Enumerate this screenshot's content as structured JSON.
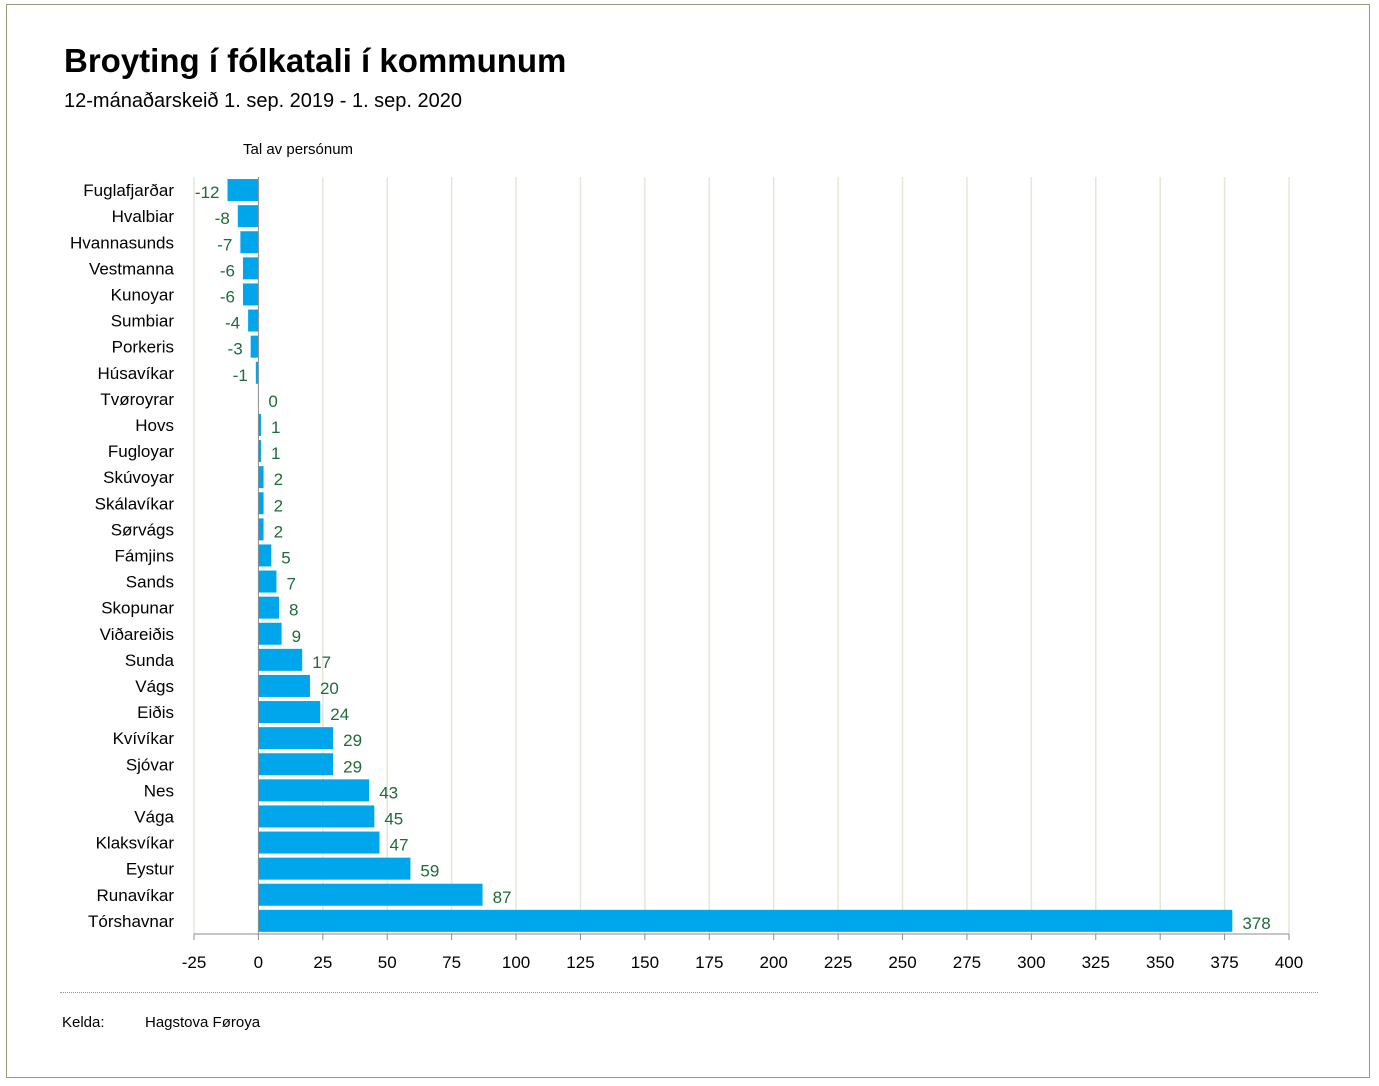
{
  "header": {
    "title": "Broyting í fólkatali í kommunum",
    "subtitle": "12-mánaðarskeið 1. sep. 2019 - 1. sep. 2020"
  },
  "footer": {
    "source_label": "Kelda:",
    "source_value": "Hagstova Føroya"
  },
  "colors": {
    "bar": "#00a6eb",
    "value_label": "#1f6b3a",
    "grid": "#e6e6d8"
  },
  "chart_data": {
    "type": "bar",
    "orientation": "horizontal",
    "title": "Broyting í fólkatali í kommunum",
    "subtitle": "12-mánaðarskeið 1. sep. 2019 - 1. sep. 2020",
    "ylabel": "Tal av persónum",
    "xlabel": "",
    "categories": [
      "Fuglafjarðar",
      "Hvalbiar",
      "Hvannasunds",
      "Vestmanna",
      "Kunoyar",
      "Sumbiar",
      "Porkeris",
      "Húsavíkar",
      "Tvøroyrar",
      "Hovs",
      "Fugloyar",
      "Skúvoyar",
      "Skálavíkar",
      "Sørvágs",
      "Fámjins",
      "Sands",
      "Skopunar",
      "Viðareiðis",
      "Sunda",
      "Vágs",
      "Eiðis",
      "Kvívíkar",
      "Sjóvar",
      "Nes",
      "Vága",
      "Klaksvíkar",
      "Eystur",
      "Runavíkar",
      "Tórshavnar"
    ],
    "values": [
      -12,
      -8,
      -7,
      -6,
      -6,
      -4,
      -3,
      -1,
      0,
      1,
      1,
      2,
      2,
      2,
      5,
      7,
      8,
      9,
      17,
      20,
      24,
      29,
      29,
      43,
      45,
      47,
      59,
      87,
      378
    ],
    "xlim": [
      -25,
      400
    ],
    "xticks": [
      -25,
      0,
      25,
      50,
      75,
      100,
      125,
      150,
      175,
      200,
      225,
      250,
      275,
      300,
      325,
      350,
      375,
      400
    ],
    "grid": true,
    "data_labels": true
  }
}
